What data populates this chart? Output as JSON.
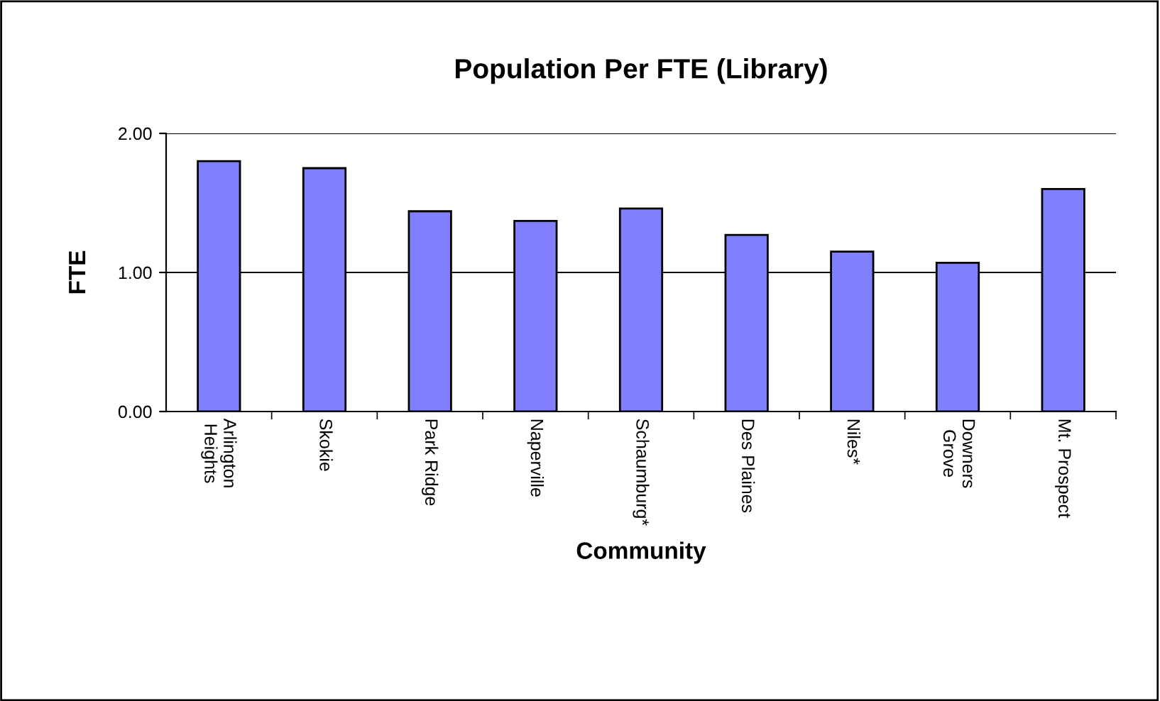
{
  "chart_data": {
    "type": "bar",
    "title": "Population Per FTE (Library)",
    "xlabel": "Community",
    "ylabel": "FTE",
    "categories": [
      "Arlington\nHeights",
      "Skokie",
      "Park Ridge",
      "Naperville",
      "Schaumburg*",
      "Des Plaines",
      "Niles*",
      "Downers\nGrove",
      "Mt. Prospect"
    ],
    "values": [
      1.8,
      1.75,
      1.44,
      1.37,
      1.46,
      1.27,
      1.15,
      1.07,
      1.6
    ],
    "color": "#8080ff",
    "ylim": [
      0,
      2
    ],
    "yticks": [
      {
        "value": 0,
        "label": "0.00"
      },
      {
        "value": 1,
        "label": "1.00"
      },
      {
        "value": 2,
        "label": "2.00"
      }
    ],
    "grid": "y"
  }
}
